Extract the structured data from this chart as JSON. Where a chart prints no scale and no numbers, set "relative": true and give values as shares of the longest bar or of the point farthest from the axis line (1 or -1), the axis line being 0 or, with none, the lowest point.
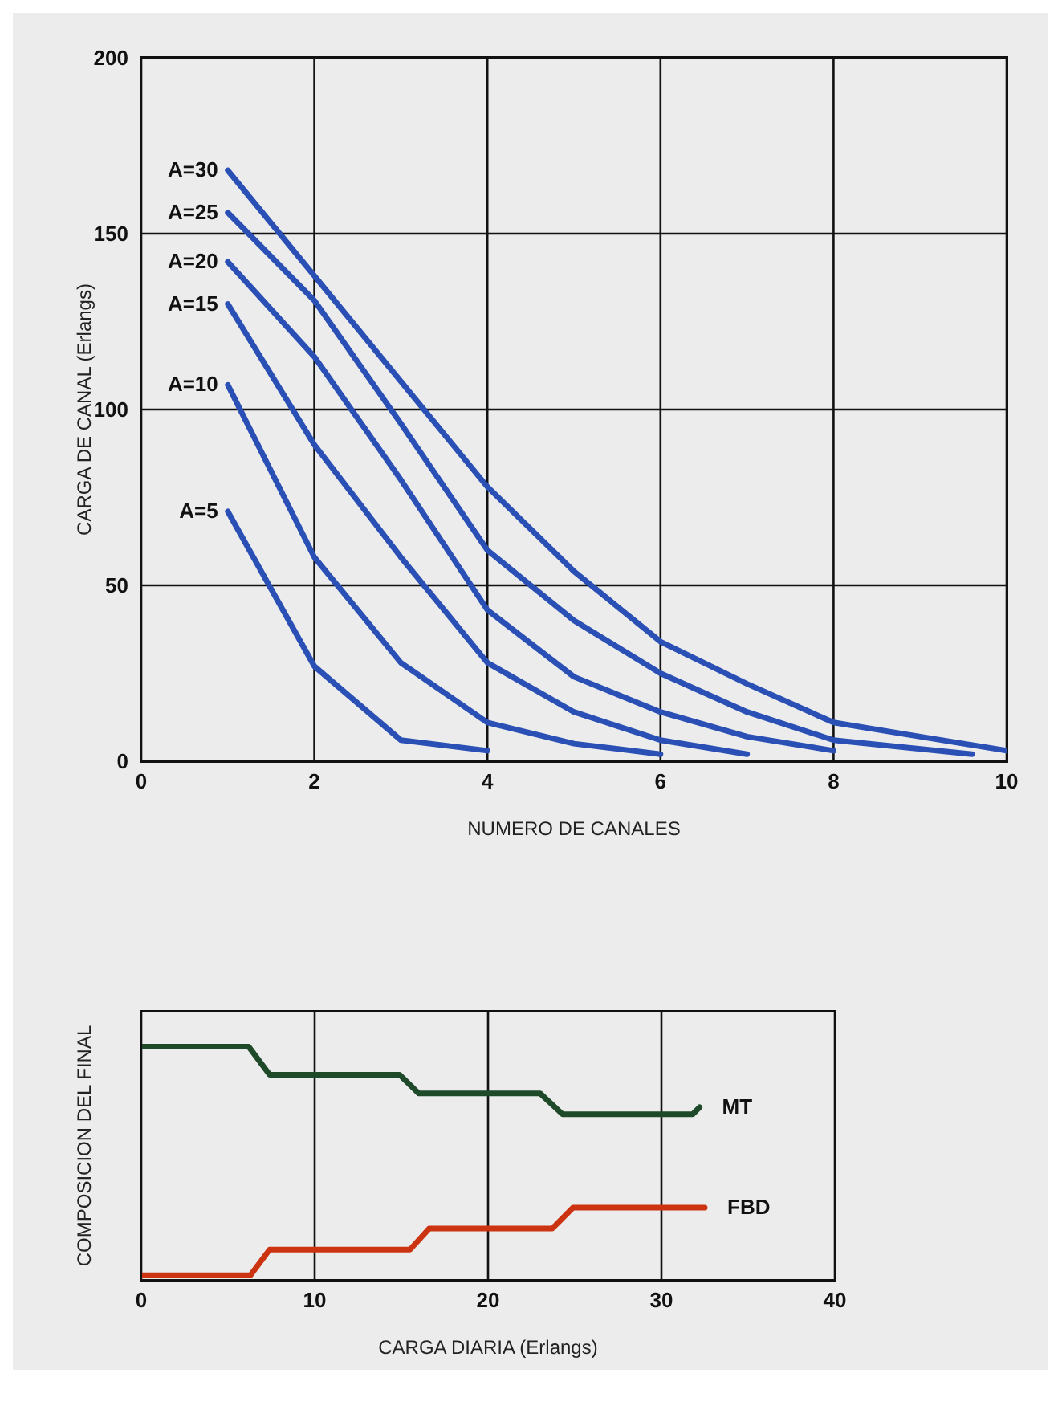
{
  "chart_data": [
    {
      "type": "line",
      "xlabel": "NUMERO DE CANALES",
      "ylabel": "CARGA DE CANAL (Erlangs)",
      "xlim": [
        0,
        10
      ],
      "ylim": [
        0,
        200
      ],
      "xticks": [
        0,
        2,
        4,
        6,
        8,
        10
      ],
      "yticks": [
        0,
        50,
        100,
        150,
        200
      ],
      "grid": true,
      "marker": "none",
      "series": [
        {
          "name": "A=30",
          "color": "#2a4fb5",
          "x": [
            1,
            2,
            3,
            4,
            5,
            6,
            7,
            8,
            9,
            10
          ],
          "values": [
            168,
            138,
            108,
            78,
            54,
            34,
            22,
            11,
            7,
            3
          ]
        },
        {
          "name": "A=25",
          "color": "#2a4fb5",
          "x": [
            1,
            2,
            3,
            4,
            5,
            6,
            7,
            8,
            9.6
          ],
          "values": [
            156,
            131,
            96,
            60,
            40,
            25,
            14,
            6,
            2
          ]
        },
        {
          "name": "A=20",
          "color": "#2a4fb5",
          "x": [
            1,
            2,
            3,
            4,
            5,
            6,
            7,
            8
          ],
          "values": [
            142,
            115,
            80,
            43,
            24,
            14,
            7,
            3
          ]
        },
        {
          "name": "A=15",
          "color": "#2a4fb5",
          "x": [
            1,
            2,
            3,
            4,
            5,
            6,
            7
          ],
          "values": [
            130,
            90,
            58,
            28,
            14,
            6,
            2
          ]
        },
        {
          "name": "A=10",
          "color": "#2a4fb5",
          "x": [
            1,
            2,
            3,
            4,
            5,
            6
          ],
          "values": [
            107,
            58,
            28,
            11,
            5,
            2
          ]
        },
        {
          "name": "A=5",
          "color": "#2a4fb5",
          "x": [
            1,
            2,
            3,
            4
          ],
          "values": [
            71,
            27,
            6,
            3
          ]
        }
      ]
    },
    {
      "type": "line",
      "xlabel": "CARGA DIARIA (Erlangs)",
      "ylabel": "COMPOSICION DEL FINAL",
      "relative": true,
      "xlim": [
        0,
        40
      ],
      "xticks": [
        0,
        10,
        20,
        30,
        40
      ],
      "grid": "x",
      "marker": "none",
      "series": [
        {
          "name": "MT",
          "color": "#1e4a2a",
          "x": [
            0,
            6.2,
            7.4,
            14.9,
            16,
            23,
            24.3,
            31.8,
            32.2
          ],
          "values": [
            1,
            1,
            0.88,
            0.88,
            0.8,
            0.8,
            0.71,
            0.71,
            0.74
          ]
        },
        {
          "name": "FBD",
          "color": "#cc3311",
          "x": [
            0,
            6.3,
            7.4,
            15.5,
            16.6,
            23.7,
            24.9,
            32.5
          ],
          "values": [
            0.02,
            0.02,
            0.13,
            0.13,
            0.22,
            0.22,
            0.31,
            0.31
          ]
        }
      ]
    }
  ]
}
